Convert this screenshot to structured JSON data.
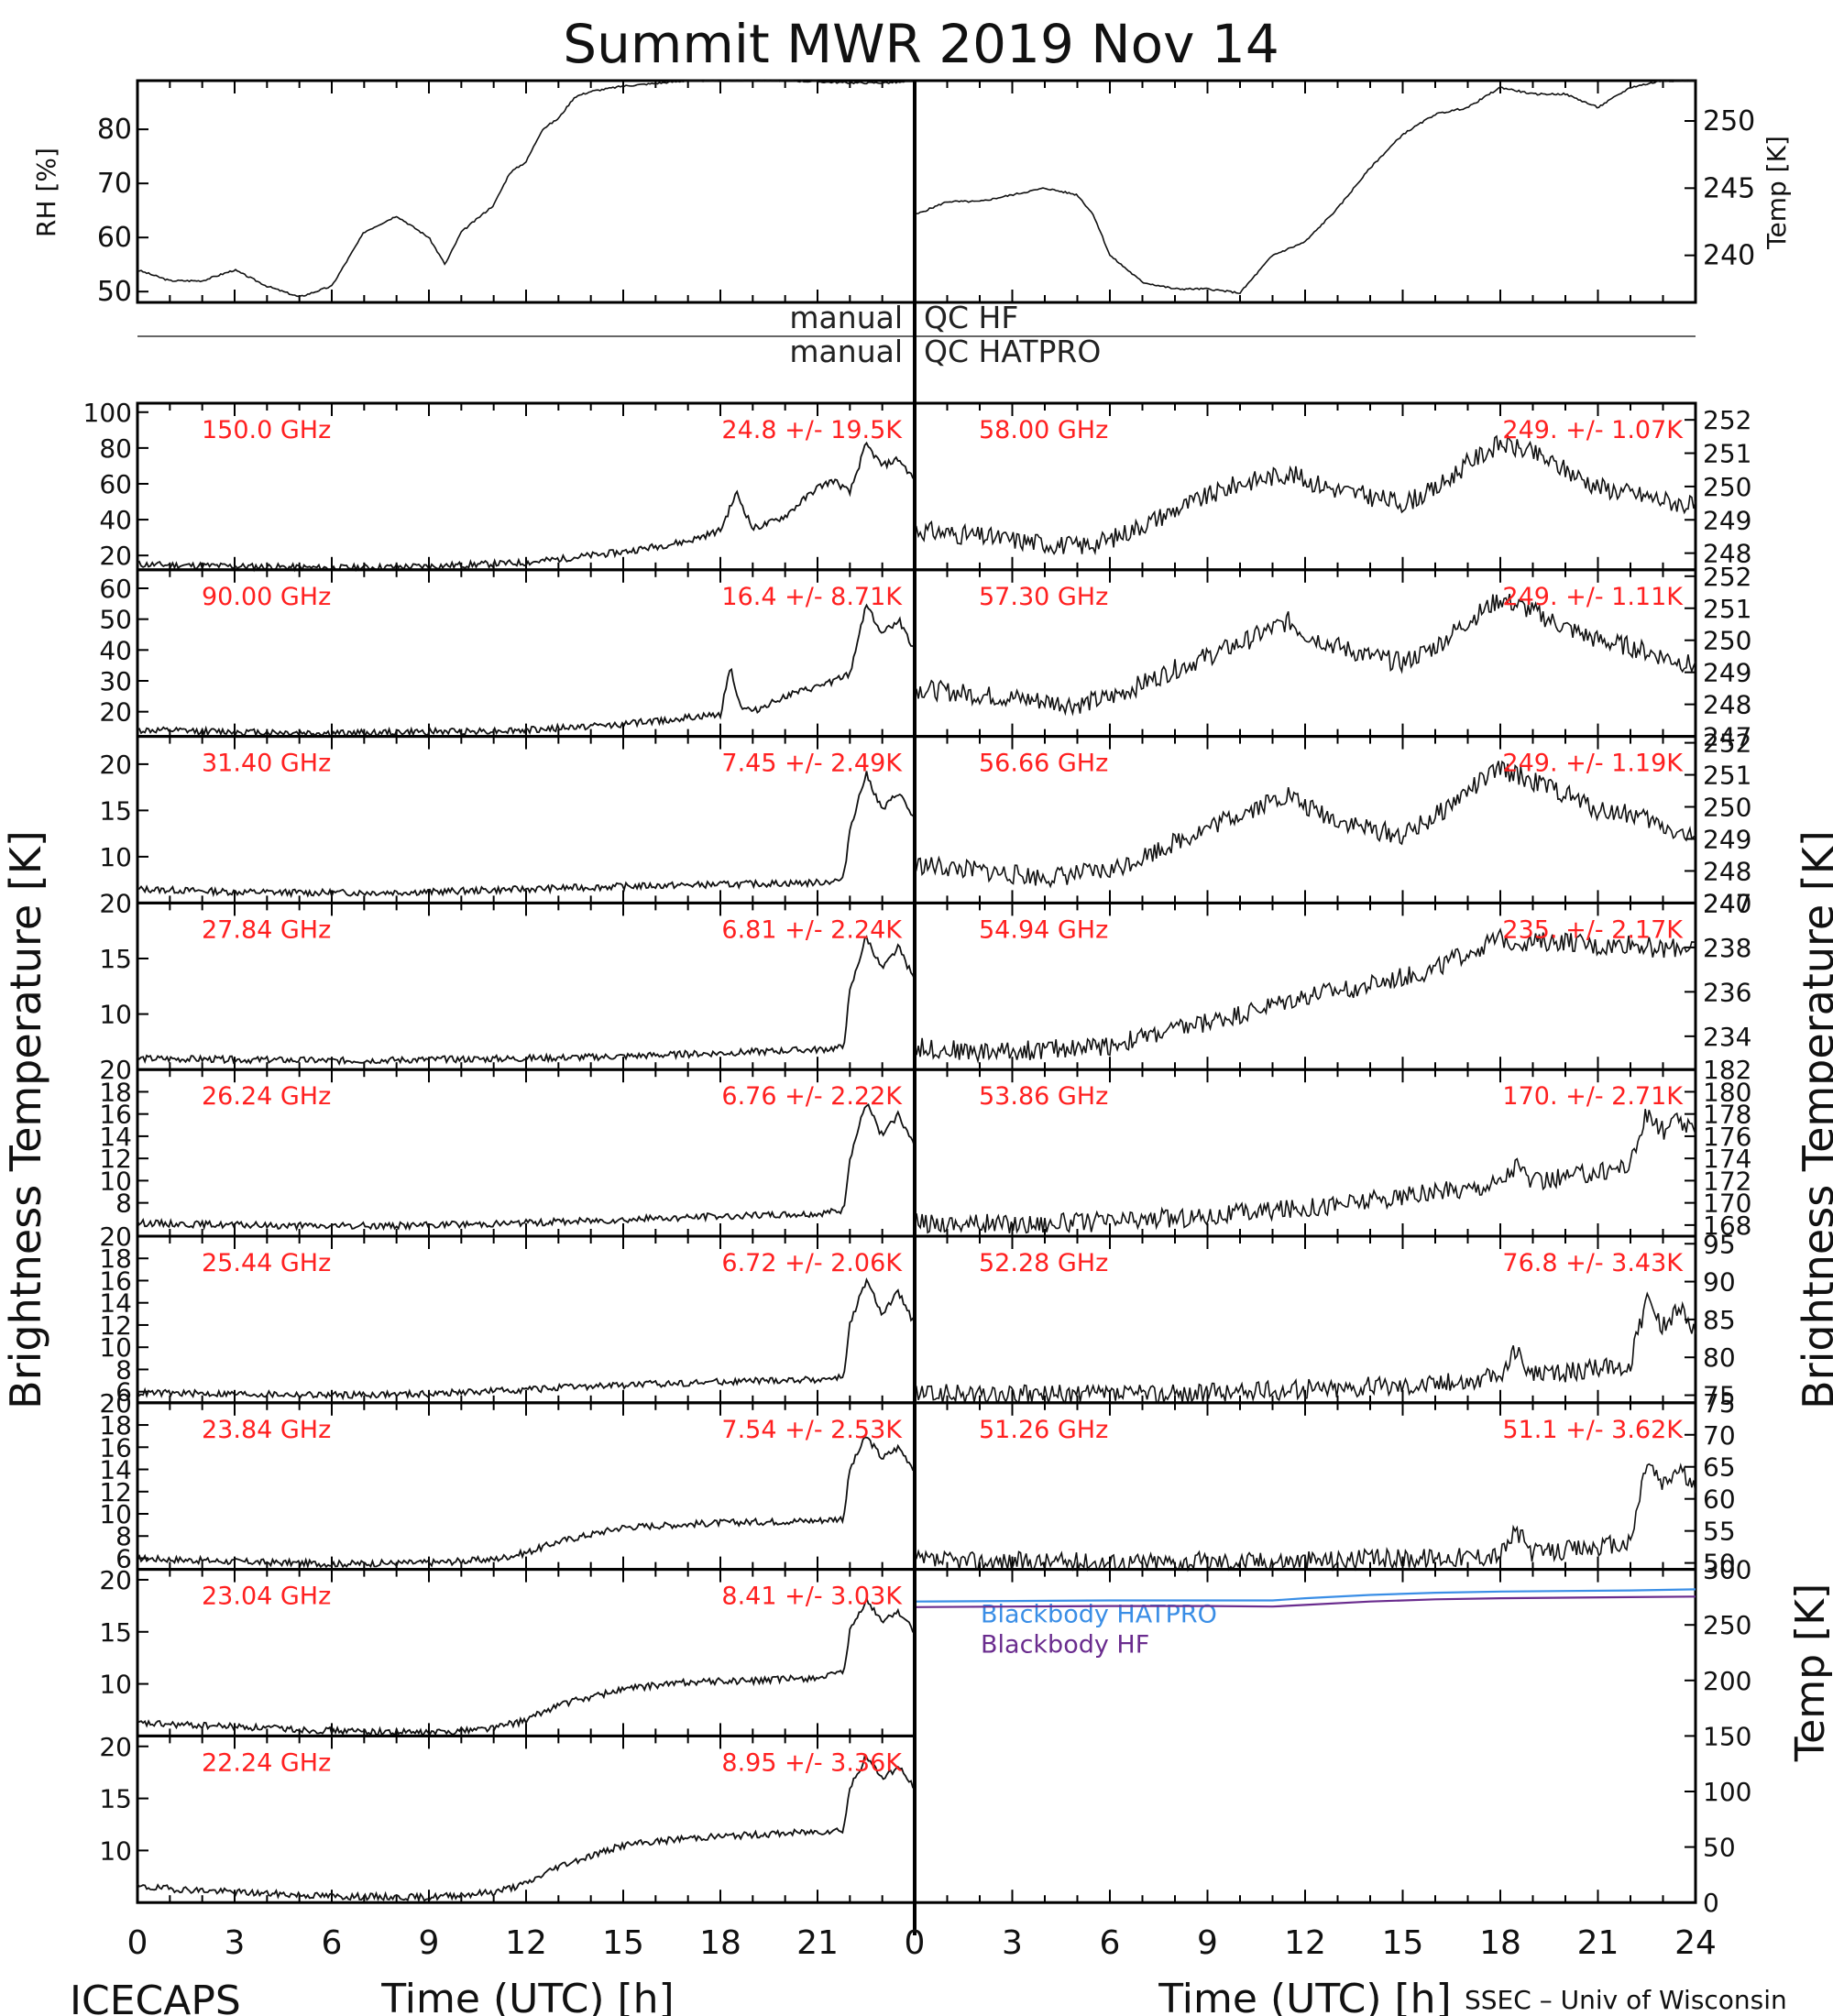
{
  "title": "Summit MWR 2019 Nov 14",
  "footer_left": "ICECAPS",
  "footer_right": "SSEC – Univ of Wisconsin",
  "left_ylabel": "Brightness Temperature [K]",
  "right_ylabel": "Brightness Temperature [K]",
  "xlabel": "Time (UTC) [h]",
  "xticks": [
    "0",
    "3",
    "6",
    "9",
    "12",
    "15",
    "18",
    "21"
  ],
  "xticks_right": [
    "0",
    "3",
    "6",
    "9",
    "12",
    "15",
    "18",
    "21",
    "24"
  ],
  "colors": {
    "annotation": "#ff2020",
    "trace": "#111111",
    "blackbody_hatpro": "#3a8ee6",
    "blackbody_hf": "#6a2c8e"
  },
  "qc_bar": {
    "row1_left": "manual",
    "row1_right": "QC HF",
    "row2_left": "manual",
    "row2_right": "QC HATPRO"
  },
  "chart_data": [
    {
      "type": "line",
      "id": "rh",
      "ylabel": "RH [%]",
      "ylim": [
        48,
        89
      ],
      "yticks": [
        50,
        60,
        70,
        80
      ],
      "x": [
        0,
        1,
        2,
        3,
        4,
        5,
        6,
        6.5,
        7,
        8,
        9,
        9.5,
        10,
        11,
        11.5,
        12,
        12.5,
        13,
        13.5,
        14,
        15,
        16,
        17,
        18,
        19,
        20,
        21,
        22,
        23,
        24
      ],
      "y": [
        54,
        52,
        52,
        54,
        51,
        49,
        51,
        56,
        61,
        64,
        60,
        55,
        61,
        66,
        72,
        74,
        80,
        82,
        86,
        87,
        88,
        88.5,
        89,
        89,
        89,
        89,
        88.8,
        88.6,
        88.6,
        88.8
      ]
    },
    {
      "type": "line",
      "id": "temp",
      "ylabel": "Temp [K]",
      "ylim": [
        236.5,
        253
      ],
      "yticks": [
        240,
        245,
        250
      ],
      "x": [
        0,
        1,
        2,
        3,
        4,
        5,
        5.5,
        6,
        6.5,
        7,
        8,
        9,
        10,
        11,
        12,
        13,
        14,
        15,
        16,
        17,
        18,
        19,
        20,
        21,
        22,
        23,
        24
      ],
      "y": [
        243,
        244,
        244,
        244.5,
        245,
        244.5,
        243,
        240,
        239,
        238,
        237.5,
        237.5,
        237.2,
        240,
        241,
        243.5,
        246.5,
        249,
        250.5,
        251,
        252.5,
        252,
        252,
        251,
        252.5,
        253,
        253
      ]
    },
    {
      "type": "line",
      "id": "hf1",
      "side": "left",
      "freq_label": "150.0 GHz",
      "stats": "24.8 +/-  19.5K",
      "ylim": [
        12,
        105
      ],
      "yticks": [
        20,
        40,
        60,
        80,
        100
      ],
      "x": [
        0,
        3,
        6,
        9,
        12,
        15,
        17,
        18,
        18.5,
        19,
        19.5,
        20,
        21,
        21.5,
        22,
        22.5,
        23,
        23.5,
        24
      ],
      "y": [
        15,
        14,
        13,
        14,
        16,
        22,
        28,
        34,
        55,
        35,
        38,
        42,
        58,
        62,
        55,
        82,
        70,
        74,
        62
      ]
    },
    {
      "type": "line",
      "id": "hf2",
      "side": "left",
      "freq_label": "90.00 GHz",
      "stats": "16.4 +/-  8.71K",
      "ylim": [
        12,
        66
      ],
      "yticks": [
        20,
        30,
        40,
        50,
        60
      ],
      "x": [
        0,
        3,
        6,
        9,
        12,
        15,
        17,
        18,
        18.3,
        18.6,
        19,
        20,
        21,
        21.5,
        22,
        22.5,
        23,
        23.5,
        24
      ],
      "y": [
        14,
        13.5,
        13,
        13.5,
        14,
        16,
        18,
        19,
        35,
        22,
        20,
        25,
        28,
        30,
        32,
        55,
        45,
        50,
        40
      ]
    },
    {
      "type": "line",
      "id": "hf3",
      "side": "left",
      "freq_label": "31.40 GHz",
      "stats": "7.45 +/- 2.49K",
      "ylim": [
        5,
        23
      ],
      "yticks": [
        10,
        15,
        20
      ],
      "x": [
        0,
        3,
        6,
        9,
        12,
        15,
        18,
        21,
        21.8,
        22,
        22.5,
        23,
        23.5,
        24
      ],
      "y": [
        6.5,
        6.2,
        6.1,
        6.2,
        6.5,
        6.8,
        7.0,
        7.2,
        7.5,
        13,
        19,
        15,
        17,
        14
      ]
    },
    {
      "type": "line",
      "id": "hf4",
      "side": "left",
      "freq_label": "27.84 GHz",
      "stats": "6.81 +/- 2.24K",
      "ylim": [
        5,
        20
      ],
      "yticks": [
        10,
        15,
        20
      ],
      "x": [
        0,
        3,
        6,
        9,
        12,
        15,
        18,
        21,
        21.8,
        22,
        22.5,
        23,
        23.5,
        24
      ],
      "y": [
        6.0,
        5.9,
        5.8,
        5.9,
        6.0,
        6.2,
        6.5,
        6.8,
        7.0,
        12,
        17,
        14,
        16,
        13
      ]
    },
    {
      "type": "line",
      "id": "hf5",
      "side": "left",
      "freq_label": "26.24 GHz",
      "stats": "6.76 +/- 2.22K",
      "ylim": [
        5,
        20
      ],
      "yticks": [
        8,
        10,
        12,
        14,
        16,
        18,
        20
      ],
      "x": [
        0,
        3,
        6,
        9,
        12,
        15,
        18,
        21,
        21.8,
        22,
        22.5,
        23,
        23.5,
        24
      ],
      "y": [
        6.2,
        6.0,
        5.9,
        6.0,
        6.2,
        6.5,
        6.8,
        7.0,
        7.3,
        12,
        17,
        14,
        16,
        13
      ]
    },
    {
      "type": "line",
      "id": "hf6",
      "side": "left",
      "freq_label": "25.44 GHz",
      "stats": "6.72 +/- 2.06K",
      "ylim": [
        5,
        20
      ],
      "yticks": [
        6,
        8,
        10,
        12,
        14,
        16,
        18,
        20
      ],
      "x": [
        0,
        3,
        6,
        9,
        12,
        15,
        18,
        21,
        21.8,
        22,
        22.5,
        23,
        23.5,
        24
      ],
      "y": [
        5.9,
        5.8,
        5.7,
        5.8,
        6.2,
        6.6,
        6.9,
        7.1,
        7.3,
        12,
        16,
        13,
        15,
        12
      ]
    },
    {
      "type": "line",
      "id": "hf7",
      "side": "left",
      "freq_label": "23.84 GHz",
      "stats": "7.54 +/- 2.53K",
      "ylim": [
        5,
        20
      ],
      "yticks": [
        6,
        8,
        10,
        12,
        14,
        16,
        18,
        20
      ],
      "x": [
        0,
        3,
        6,
        9,
        11,
        12,
        13,
        15,
        18,
        21,
        21.8,
        22,
        22.5,
        23,
        23.5,
        24
      ],
      "y": [
        6.0,
        5.7,
        5.5,
        5.6,
        5.9,
        6.5,
        7.5,
        8.8,
        9.2,
        9.4,
        9.6,
        14,
        17,
        15,
        16,
        14
      ]
    },
    {
      "type": "line",
      "id": "hf8",
      "side": "left",
      "freq_label": "23.04 GHz",
      "stats": "8.41 +/- 3.03K",
      "ylim": [
        5,
        21
      ],
      "yticks": [
        10,
        15,
        20
      ],
      "x": [
        0,
        3,
        6,
        9,
        11,
        12,
        13,
        15,
        17,
        19,
        21,
        21.8,
        22,
        22.5,
        23,
        23.5,
        24
      ],
      "y": [
        6.2,
        5.9,
        5.5,
        5.3,
        5.8,
        6.5,
        8.0,
        9.5,
        10.2,
        10.3,
        10.6,
        11,
        15,
        18,
        16,
        17,
        15
      ]
    },
    {
      "type": "line",
      "id": "hf9",
      "side": "left",
      "freq_label": "22.24 GHz",
      "stats": "8.95 +/- 3.36K",
      "ylim": [
        5,
        21
      ],
      "yticks": [
        10,
        15,
        20
      ],
      "x": [
        0,
        3,
        6,
        9,
        11,
        12,
        13,
        15,
        17,
        19,
        21,
        21.8,
        22,
        22.5,
        23,
        23.5,
        24
      ],
      "y": [
        6.5,
        6.0,
        5.6,
        5.5,
        6.0,
        6.8,
        8.5,
        10.5,
        11.2,
        11.5,
        11.8,
        12,
        16,
        19,
        17,
        18,
        16
      ]
    },
    {
      "type": "line",
      "id": "hp1",
      "side": "right",
      "freq_label": "58.00 GHz",
      "stats": "249.  +/- 1.07K",
      "ylim": [
        247.5,
        252.5
      ],
      "yticks": [
        248,
        249,
        250,
        251,
        252
      ],
      "x": [
        0,
        2,
        4,
        5,
        6,
        8,
        10,
        11.5,
        12,
        13,
        14,
        15,
        16,
        17,
        18,
        19,
        20,
        21,
        22,
        23,
        24
      ],
      "y": [
        248.7,
        248.5,
        248.3,
        248.2,
        248.4,
        249.3,
        250.1,
        250.4,
        250.2,
        249.9,
        249.7,
        249.5,
        249.9,
        250.7,
        251.3,
        251.0,
        250.5,
        250.0,
        249.8,
        249.6,
        249.4
      ]
    },
    {
      "type": "line",
      "id": "hp2",
      "side": "right",
      "freq_label": "57.30 GHz",
      "stats": "249.  +/- 1.11K",
      "ylim": [
        247,
        252.2
      ],
      "yticks": [
        247,
        248,
        249,
        250,
        251,
        252
      ],
      "x": [
        0,
        2,
        4,
        5,
        6,
        8,
        10,
        11.5,
        12,
        13,
        14,
        15,
        16,
        17,
        18,
        19,
        20,
        21,
        22,
        23,
        24
      ],
      "y": [
        248.5,
        248.3,
        248.1,
        248.0,
        248.2,
        249.1,
        249.9,
        250.6,
        250.2,
        249.8,
        249.5,
        249.3,
        249.8,
        250.6,
        251.3,
        250.9,
        250.4,
        250.0,
        249.8,
        249.5,
        249.2
      ]
    },
    {
      "type": "line",
      "id": "hp3",
      "side": "right",
      "freq_label": "56.66 GHz",
      "stats": "249.  +/- 1.19K",
      "ylim": [
        247,
        252.2
      ],
      "yticks": [
        247,
        248,
        249,
        250,
        251,
        252
      ],
      "x": [
        0,
        2,
        4,
        5,
        6,
        8,
        10,
        11.5,
        12,
        13,
        14,
        15,
        16,
        17,
        18,
        19,
        20,
        21,
        22,
        23,
        24
      ],
      "y": [
        248.2,
        248.0,
        247.8,
        247.9,
        248.0,
        248.9,
        249.8,
        250.4,
        250.0,
        249.6,
        249.3,
        249.1,
        249.7,
        250.5,
        251.2,
        250.8,
        250.4,
        249.9,
        249.8,
        249.4,
        249.0
      ]
    },
    {
      "type": "line",
      "id": "hp4",
      "side": "right",
      "freq_label": "54.94 GHz",
      "stats": "235.  +/- 2.17K",
      "ylim": [
        232.5,
        240
      ],
      "yticks": [
        234,
        236,
        238,
        240
      ],
      "x": [
        0,
        2,
        4,
        6,
        8,
        10,
        12,
        14,
        16,
        17,
        18,
        19,
        20,
        21,
        22,
        23,
        24
      ],
      "y": [
        233.5,
        233.3,
        233.4,
        233.6,
        234.3,
        235.0,
        235.8,
        236.3,
        237.0,
        237.8,
        238.4,
        238.2,
        238.3,
        238.0,
        238.2,
        237.9,
        238.1
      ]
    },
    {
      "type": "line",
      "id": "hp5",
      "side": "right",
      "freq_label": "53.86 GHz",
      "stats": "170.  +/- 2.71K",
      "ylim": [
        167,
        182
      ],
      "yticks": [
        168,
        170,
        172,
        174,
        176,
        178,
        180,
        182
      ],
      "x": [
        0,
        3,
        6,
        9,
        12,
        15,
        17,
        18,
        18.5,
        19,
        20,
        21,
        22,
        22.5,
        23,
        23.5,
        24
      ],
      "y": [
        168.2,
        168.1,
        168.3,
        168.8,
        169.6,
        170.5,
        171.3,
        171.9,
        173.5,
        171.8,
        172.3,
        172.8,
        173.5,
        178,
        176.5,
        177.5,
        176
      ]
    },
    {
      "type": "line",
      "id": "hp6",
      "side": "right",
      "freq_label": "52.28 GHz",
      "stats": "76.8 +/- 3.43K",
      "ylim": [
        74,
        96
      ],
      "yticks": [
        75,
        80,
        85,
        90,
        95
      ],
      "x": [
        0,
        3,
        6,
        9,
        12,
        15,
        17,
        18,
        18.5,
        19,
        20,
        21,
        22,
        22.5,
        23,
        23.5,
        24
      ],
      "y": [
        75.2,
        75.0,
        75.1,
        75.3,
        75.8,
        76.4,
        76.9,
        77.5,
        81,
        77.6,
        78.0,
        78.5,
        79.0,
        88,
        84,
        87,
        83
      ]
    },
    {
      "type": "line",
      "id": "hp7",
      "side": "right",
      "freq_label": "51.26 GHz",
      "stats": "51.1 +/- 3.62K",
      "ylim": [
        49,
        75
      ],
      "yticks": [
        50,
        55,
        60,
        65,
        70,
        75
      ],
      "x": [
        0,
        3,
        6,
        9,
        12,
        15,
        17,
        18,
        18.5,
        19,
        20,
        21,
        22,
        22.5,
        23,
        23.5,
        24
      ],
      "y": [
        50.3,
        50.2,
        50.1,
        50.2,
        50.4,
        50.7,
        51.0,
        51.3,
        55,
        51.5,
        52.0,
        52.5,
        53.0,
        66,
        62,
        65,
        61
      ]
    },
    {
      "type": "line",
      "id": "blackbody",
      "side": "right",
      "ylabel": "Temp [K]",
      "ylim": [
        0,
        300
      ],
      "yticks": [
        0,
        50,
        100,
        150,
        200,
        250,
        300
      ],
      "series": [
        {
          "name": "Blackbody HATPRO",
          "x": [
            0,
            3,
            6,
            9,
            11,
            12,
            14,
            16,
            18,
            20,
            22,
            24
          ],
          "y": [
            271,
            271.5,
            272,
            272,
            272,
            274,
            277,
            279,
            280,
            280.5,
            281,
            282
          ]
        },
        {
          "name": "Blackbody HF",
          "x": [
            0,
            3,
            6,
            9,
            11,
            12,
            14,
            16,
            18,
            20,
            22,
            24
          ],
          "y": [
            266,
            266.5,
            267,
            267,
            266.5,
            268,
            271,
            273,
            274,
            274.5,
            275,
            275.5
          ]
        }
      ]
    }
  ]
}
